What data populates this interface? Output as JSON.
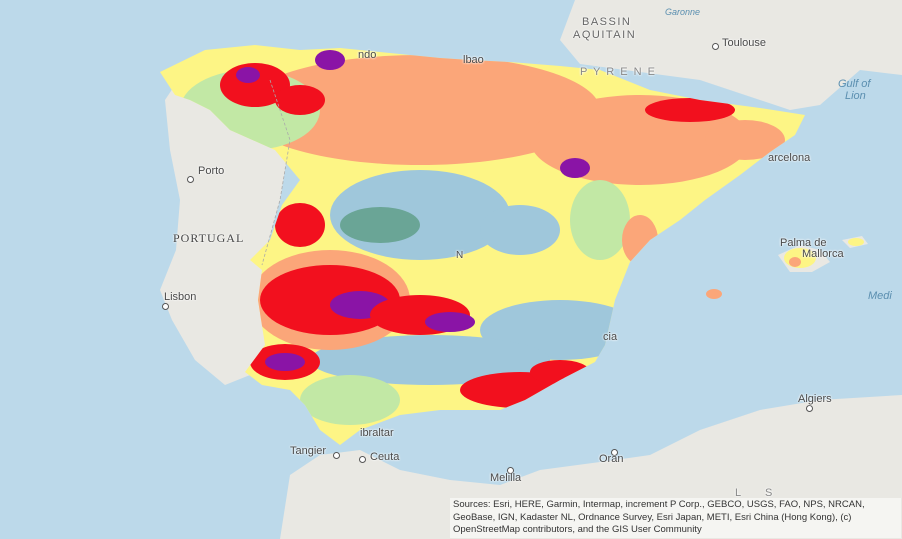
{
  "colors": {
    "sea": "#bcd9ea",
    "land": "#e9e8e3",
    "class_purple": "#8a14a6",
    "class_red": "#f2101e",
    "class_orange": "#fba679",
    "class_yellow": "#fdf585",
    "class_lightgreen": "#c2e8a5",
    "class_blue": "#9fc7db",
    "class_teal": "#6aa596"
  },
  "places": {
    "bassin": "BASSIN",
    "aquitain": "AQUITAIN",
    "garonne": "Garonne",
    "toulouse": "Toulouse",
    "gulf_of": "Gulf of",
    "lion": "Lion",
    "porto": "Porto",
    "portugal": "PORTUGAL",
    "lisbon": "Lisbon",
    "barcelona": "arcelona",
    "palma": "Palma de",
    "mallorca": "Mallorca",
    "medi": "Medi",
    "algiers": "Algiers",
    "tangier": "Tangier",
    "gibraltar": "ibraltar",
    "ceuta": "Ceuta",
    "melilla": "Melilla",
    "oran": "Oran",
    "murcia": "cia",
    "bilbao": "lbao",
    "santander": "ndo",
    "pyrenees": "P Y R E N E",
    "madrid_n": "N",
    "atlas_l": "L",
    "atlas_s": "S"
  },
  "attribution": "Sources: Esri, HERE, Garmin, Intermap, increment P Corp., GEBCO, USGS, FAO, NPS, NRCAN, GeoBase, IGN, Kadaster NL, Ordnance Survey, Esri Japan, METI, Esri China (Hong Kong), (c) OpenStreetMap contributors, and the GIS User Community"
}
